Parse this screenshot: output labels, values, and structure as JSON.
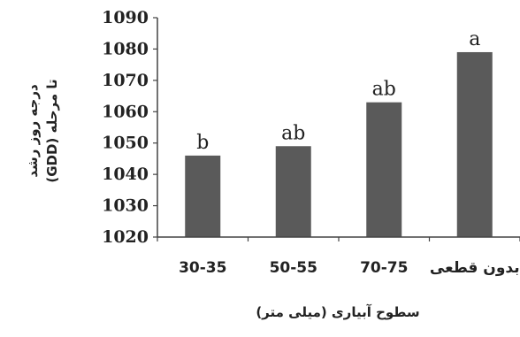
{
  "chart_data": {
    "type": "bar",
    "categories": [
      "30-35",
      "50-55",
      "70-75",
      "بدون قطعی"
    ],
    "values": [
      1046,
      1049,
      1063,
      1079
    ],
    "significance_letters": [
      "b",
      "ab",
      "ab",
      "a"
    ],
    "ylim": [
      1020,
      1090
    ],
    "yticks": [
      "1020",
      "1030",
      "1040",
      "1050",
      "1060",
      "1070",
      "1080",
      "1090"
    ],
    "ylabel_line1": "درجه روز رشد",
    "ylabel_line2": "(GDD) تا مرحله",
    "xlabel": "سطوح آبیاری (میلی متر)",
    "grid": false,
    "bar_color": "#5a5a5a"
  }
}
